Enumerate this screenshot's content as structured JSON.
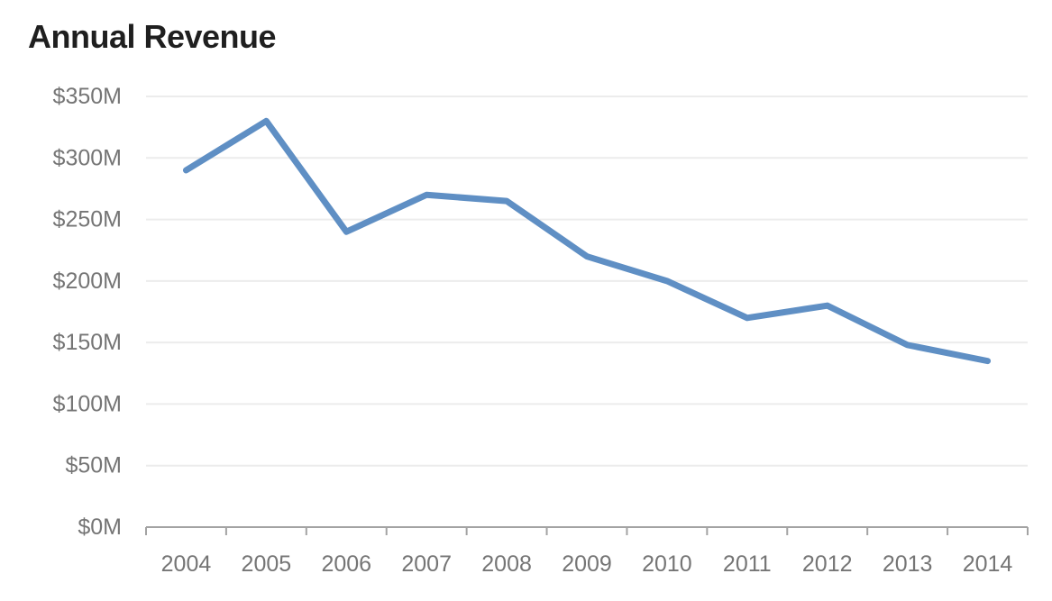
{
  "chart": {
    "title": "Annual Revenue"
  },
  "chart_data": {
    "type": "line",
    "title": "Annual Revenue",
    "categories": [
      "2004",
      "2005",
      "2006",
      "2007",
      "2008",
      "2009",
      "2010",
      "2011",
      "2012",
      "2013",
      "2014"
    ],
    "series": [
      {
        "name": "Annual Revenue",
        "values": [
          290,
          330,
          240,
          270,
          265,
          220,
          200,
          170,
          180,
          148,
          135
        ]
      }
    ],
    "unit": "$M",
    "xlabel": "",
    "ylabel": "",
    "ylim": [
      0,
      350
    ],
    "y_tick_interval": 50,
    "y_tick_labels": [
      "$0M",
      "$50M",
      "$100M",
      "$150M",
      "$200M",
      "$250M",
      "$300M",
      "$350M"
    ],
    "grid": true,
    "legend_position": "none",
    "colors": {
      "line": "#5f8fc4",
      "grid": "#ececec",
      "axis": "#a3a3a3",
      "tick_label": "#757575",
      "title": "#1f1f1f",
      "background": "#ffffff"
    }
  }
}
